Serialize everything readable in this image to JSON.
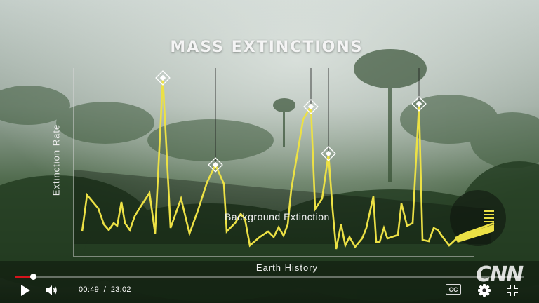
{
  "video": {
    "title": "MASS EXTINCTIONS",
    "y_axis_label": "Extinction Rate",
    "x_axis_label": "Earth History",
    "annotation": "Background Extinction",
    "channel_logo": "CNN"
  },
  "player": {
    "current_time": "00:49",
    "separator": "/",
    "duration": "23:02",
    "progress": 0.035,
    "cc_label": "CC"
  },
  "icons": {
    "play": "play-icon",
    "volume": "volume-icon",
    "settings": "gear-icon",
    "fullscreen": "exit-fullscreen-icon"
  },
  "colors": {
    "line": "#ece145",
    "progress": "#d6141c"
  }
}
